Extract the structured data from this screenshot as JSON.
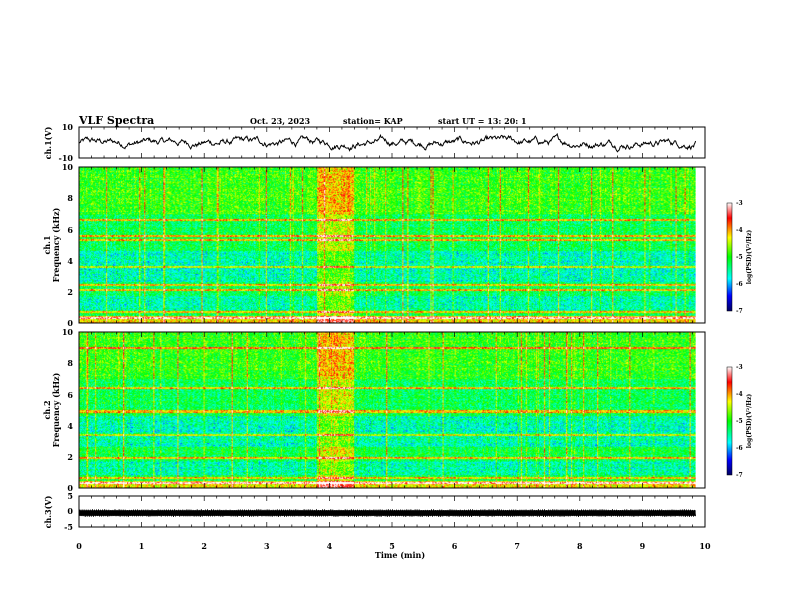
{
  "header": {
    "title": "VLF Spectra",
    "date": "Oct. 23, 2023",
    "station": "station= KAP",
    "start": "start  UT  =   13: 20: 1"
  },
  "chart_data": [
    {
      "type": "line",
      "panel": "ch1-waveform",
      "ylabel": "ch.1(V)",
      "ylim": [
        -10,
        10
      ],
      "yticks": [
        "10",
        "-10"
      ],
      "xlim": [
        0,
        10
      ],
      "note_values": "noisy waveform fluctuating mostly between about -4 V and +4 V"
    },
    {
      "type": "heatmap",
      "panel": "ch1-spectrogram",
      "ylabel_1": "ch.1",
      "ylabel_2": "Frequency (kHz)",
      "ylim": [
        0,
        10
      ],
      "yticks": [
        "0",
        "2",
        "4",
        "6",
        "8",
        "10"
      ],
      "xlim": [
        0,
        9.85
      ],
      "burst_interval_min": [
        3.8,
        4.4
      ],
      "line_freqs_khz": [
        0.3,
        0.7,
        2.1,
        2.4,
        3.6,
        5.3,
        5.6,
        6.6
      ],
      "colorbar": {
        "min": -7,
        "max": -3,
        "ticks": [
          "-3",
          "-4",
          "-5",
          "-6",
          "-7"
        ],
        "label": "log(PSD)(V²/Hz)"
      }
    },
    {
      "type": "heatmap",
      "panel": "ch2-spectrogram",
      "ylabel_1": "ch.2",
      "ylabel_2": "Frequency (kHz)",
      "ylim": [
        0,
        10
      ],
      "yticks": [
        "0",
        "2",
        "4",
        "6",
        "8",
        "10"
      ],
      "xlim": [
        0,
        9.85
      ],
      "burst_interval_min": [
        3.8,
        4.4
      ],
      "line_freqs_khz": [
        0.3,
        0.6,
        1.9,
        3.4,
        4.9,
        6.4,
        9.0
      ],
      "colorbar": {
        "min": -7,
        "max": -3,
        "ticks": [
          "-3",
          "-4",
          "-5",
          "-6",
          "-7"
        ],
        "label": "log(PSD)(V²/Hz)"
      }
    },
    {
      "type": "line",
      "panel": "ch3-waveform",
      "ylabel": "ch.3(V)",
      "ylim": [
        -5,
        5
      ],
      "yticks": [
        "5",
        "0",
        "-5"
      ],
      "xlim": [
        0,
        10
      ],
      "note_values": "dense oscillation between about -1.5 V and 0.5 V"
    }
  ],
  "xaxis": {
    "label": "Time (min)",
    "ticks": [
      "0",
      "1",
      "2",
      "3",
      "4",
      "5",
      "6",
      "7",
      "8",
      "9",
      "10"
    ],
    "xlim": [
      0,
      10
    ]
  },
  "colors": {
    "spectrum": [
      "#000080",
      "#0000ff",
      "#00ffff",
      "#00ff00",
      "#ffff00",
      "#ff0000",
      "#ffffff"
    ]
  }
}
